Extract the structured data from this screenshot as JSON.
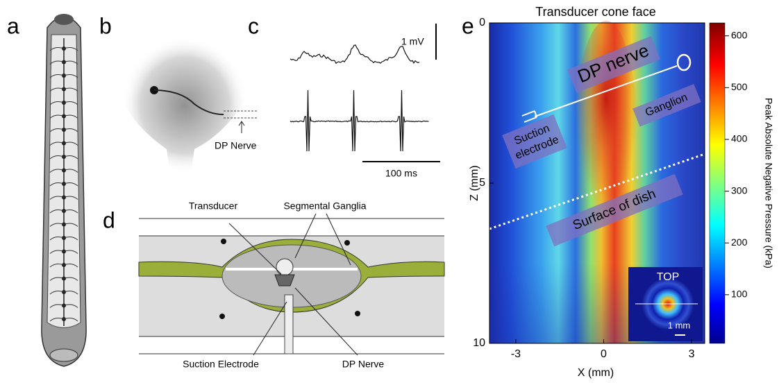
{
  "panels": {
    "a": {
      "label": "a"
    },
    "b": {
      "label": "b",
      "annotation": "DP Nerve"
    },
    "c": {
      "label": "c",
      "voltage_scale": "1 mV",
      "time_scale": "100 ms"
    },
    "d": {
      "label": "d",
      "transducer": "Transducer",
      "ganglia": "Segmental Ganglia",
      "electrode": "Suction Electrode",
      "nerve": "DP Nerve"
    },
    "e": {
      "label": "e",
      "title": "Transducer cone face",
      "x_label": "X (mm)",
      "y_label": "Z (mm)",
      "xlim": [
        -3.9,
        3.45
      ],
      "xticks": [
        -3,
        0,
        3
      ],
      "ylim": [
        0,
        10
      ],
      "yticks": [
        0,
        5,
        10
      ],
      "colorbar_label": "Peak Absolute Negative Pressure (kPa)",
      "colorbar_lim": [
        6,
        625
      ],
      "colorbar_ticks": [
        100,
        200,
        300,
        400,
        500,
        600
      ],
      "annotations": {
        "nerve": "DP nerve",
        "ganglion": "Ganglion",
        "electrode": [
          "Suction",
          "electrode"
        ],
        "dish": "Surface of dish",
        "inset": "TOP",
        "inset_scale": "1 mm"
      }
    }
  }
}
